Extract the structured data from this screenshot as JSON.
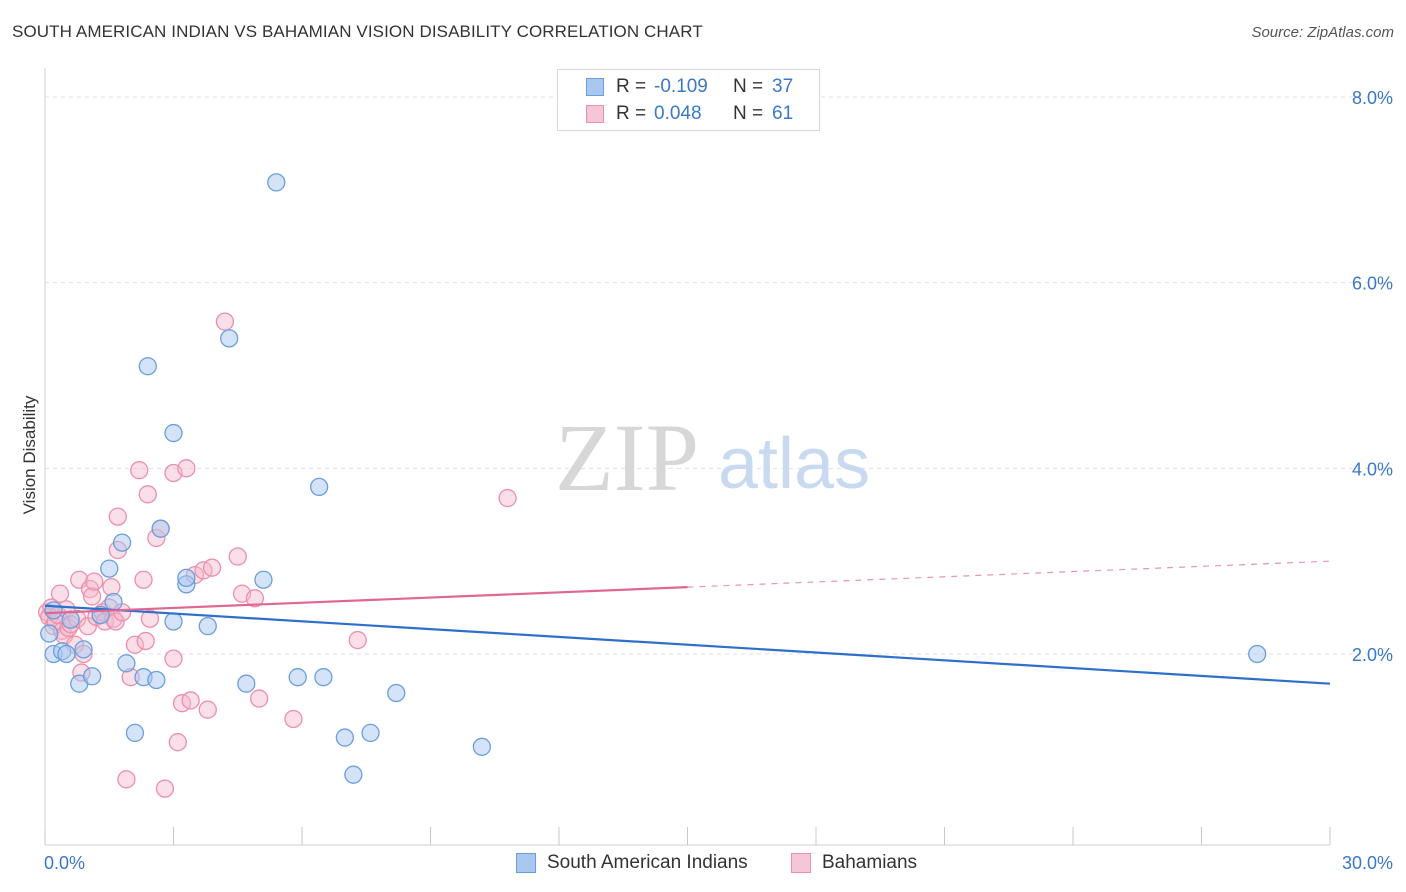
{
  "header": {
    "title": "SOUTH AMERICAN INDIAN VS BAHAMIAN VISION DISABILITY CORRELATION CHART",
    "source": "Source: ZipAtlas.com"
  },
  "watermark": {
    "zip": "ZIP",
    "atlas": "atlas"
  },
  "legend": {
    "rows": [
      {
        "r_label": "R =",
        "r_value": "-0.109",
        "n_label": "N =",
        "n_value": "37"
      },
      {
        "r_label": "R =",
        "r_value": "0.048",
        "n_label": "N =",
        "n_value": "61"
      }
    ]
  },
  "bottom_legend": {
    "series1": "South American Indians",
    "series2": "Bahamians"
  },
  "colors": {
    "blue_fill": "#a9c8f0",
    "blue_stroke": "#6a9fdc",
    "blue_line": "#2f6fcc",
    "pink_fill": "#f5b8cc",
    "pink_stroke": "#ec8fab",
    "pink_line": "#e0678f",
    "axis_text": "#3a78c8",
    "grid": "#e1e1e1"
  },
  "chart_data": {
    "type": "scatter",
    "title": "SOUTH AMERICAN INDIAN VS BAHAMIAN VISION DISABILITY CORRELATION CHART",
    "xlabel": "",
    "ylabel": "Vision Disability",
    "xlim": [
      0,
      30
    ],
    "ylim": [
      0,
      8.5
    ],
    "x_tick_labels": [
      "0.0%",
      "30.0%"
    ],
    "y_tick_labels": [
      "2.0%",
      "4.0%",
      "6.0%",
      "8.0%"
    ],
    "y_ticks": [
      2,
      4,
      6,
      8
    ],
    "grid": true,
    "series": [
      {
        "name": "South American Indians",
        "color": "#6a9fdc",
        "trend": {
          "x": [
            0,
            30
          ],
          "y": [
            2.52,
            1.68
          ]
        },
        "points": [
          [
            0.2,
            2.47
          ],
          [
            0.2,
            2.0
          ],
          [
            0.4,
            2.03
          ],
          [
            0.5,
            2.0
          ],
          [
            0.6,
            2.37
          ],
          [
            0.8,
            1.68
          ],
          [
            0.9,
            2.05
          ],
          [
            1.1,
            1.76
          ],
          [
            1.3,
            2.42
          ],
          [
            1.5,
            2.92
          ],
          [
            1.6,
            2.56
          ],
          [
            1.8,
            3.2
          ],
          [
            1.9,
            1.9
          ],
          [
            2.1,
            1.15
          ],
          [
            2.3,
            1.75
          ],
          [
            2.4,
            5.1
          ],
          [
            2.6,
            1.72
          ],
          [
            2.7,
            3.35
          ],
          [
            3.0,
            4.38
          ],
          [
            3.0,
            2.35
          ],
          [
            3.3,
            2.75
          ],
          [
            3.3,
            2.82
          ],
          [
            3.8,
            2.3
          ],
          [
            4.3,
            5.4
          ],
          [
            4.7,
            1.68
          ],
          [
            5.1,
            2.8
          ],
          [
            5.4,
            7.08
          ],
          [
            5.9,
            1.75
          ],
          [
            6.4,
            3.8
          ],
          [
            6.5,
            1.75
          ],
          [
            7.0,
            1.1
          ],
          [
            7.2,
            0.7
          ],
          [
            7.6,
            1.15
          ],
          [
            8.2,
            1.58
          ],
          [
            10.2,
            1.0
          ],
          [
            28.3,
            2.0
          ],
          [
            0.1,
            2.22
          ]
        ]
      },
      {
        "name": "Bahamians",
        "color": "#ec8fab",
        "trend": {
          "x": [
            0,
            15
          ],
          "y": [
            2.44,
            2.72
          ],
          "dash_x": [
            15,
            30
          ],
          "dash_y": [
            2.72,
            3.0
          ]
        },
        "points": [
          [
            0.05,
            2.45
          ],
          [
            0.1,
            2.4
          ],
          [
            0.15,
            2.5
          ],
          [
            0.2,
            2.3
          ],
          [
            0.25,
            2.35
          ],
          [
            0.3,
            2.42
          ],
          [
            0.35,
            2.65
          ],
          [
            0.4,
            2.25
          ],
          [
            0.45,
            2.2
          ],
          [
            0.5,
            2.48
          ],
          [
            0.55,
            2.28
          ],
          [
            0.6,
            2.32
          ],
          [
            0.7,
            2.1
          ],
          [
            0.75,
            2.38
          ],
          [
            0.8,
            2.8
          ],
          [
            0.85,
            1.8
          ],
          [
            0.9,
            2.0
          ],
          [
            1.0,
            2.3
          ],
          [
            1.05,
            2.7
          ],
          [
            1.1,
            2.62
          ],
          [
            1.15,
            2.78
          ],
          [
            1.2,
            2.4
          ],
          [
            1.3,
            2.42
          ],
          [
            1.35,
            2.45
          ],
          [
            1.4,
            2.35
          ],
          [
            1.5,
            2.5
          ],
          [
            1.55,
            2.72
          ],
          [
            1.6,
            2.38
          ],
          [
            1.65,
            2.35
          ],
          [
            1.7,
            3.48
          ],
          [
            1.7,
            3.12
          ],
          [
            1.8,
            2.45
          ],
          [
            1.9,
            0.65
          ],
          [
            2.0,
            1.75
          ],
          [
            2.1,
            2.1
          ],
          [
            2.2,
            3.98
          ],
          [
            2.3,
            2.8
          ],
          [
            2.35,
            2.14
          ],
          [
            2.4,
            3.72
          ],
          [
            2.45,
            2.38
          ],
          [
            2.6,
            3.25
          ],
          [
            2.7,
            3.35
          ],
          [
            2.8,
            0.55
          ],
          [
            3.0,
            1.95
          ],
          [
            3.0,
            3.95
          ],
          [
            3.1,
            1.05
          ],
          [
            3.2,
            1.47
          ],
          [
            3.3,
            4.0
          ],
          [
            3.4,
            1.5
          ],
          [
            3.5,
            2.85
          ],
          [
            3.7,
            2.9
          ],
          [
            3.8,
            1.4
          ],
          [
            3.9,
            2.93
          ],
          [
            4.2,
            5.58
          ],
          [
            4.5,
            3.05
          ],
          [
            4.6,
            2.65
          ],
          [
            4.9,
            2.6
          ],
          [
            5.0,
            1.52
          ],
          [
            5.8,
            1.3
          ],
          [
            7.3,
            2.15
          ],
          [
            10.8,
            3.68
          ]
        ]
      }
    ]
  }
}
